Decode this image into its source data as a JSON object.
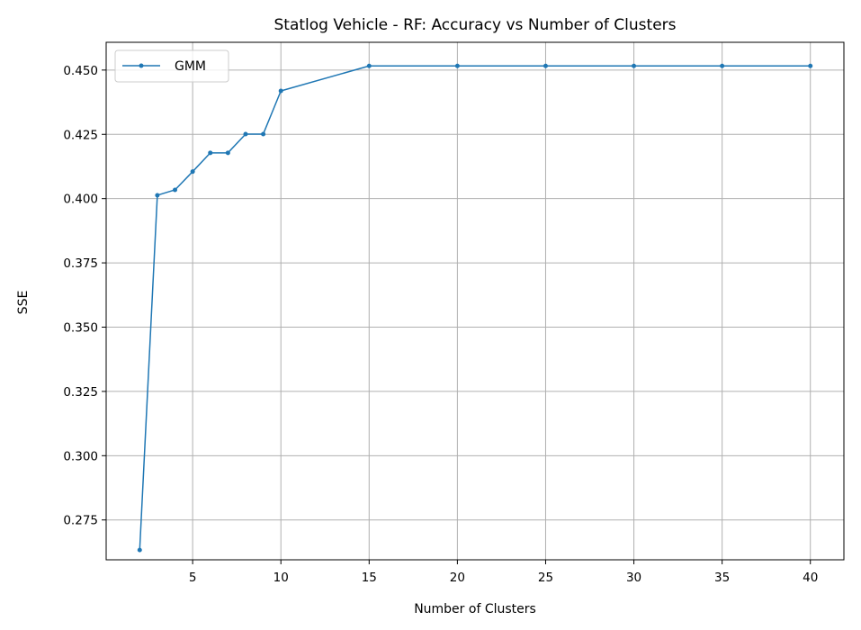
{
  "chart_data": {
    "type": "line",
    "title": "Statlog Vehicle - RF: Accuracy vs Number of Clusters",
    "xlabel": "Number of Clusters",
    "ylabel": "SSE",
    "xlim": [
      0.1,
      41.9
    ],
    "ylim": [
      0.2595,
      0.4608
    ],
    "xticks": [
      5,
      10,
      15,
      20,
      25,
      30,
      35,
      40
    ],
    "yticks": [
      0.275,
      0.3,
      0.325,
      0.35,
      0.375,
      0.4,
      0.425,
      0.45
    ],
    "ytick_labels": [
      "0.275",
      "0.300",
      "0.325",
      "0.350",
      "0.375",
      "0.400",
      "0.425",
      "0.450"
    ],
    "grid": true,
    "legend_position": "top-left",
    "series": [
      {
        "name": "GMM",
        "color": "#1f77b4",
        "x": [
          2,
          3,
          4,
          5,
          6,
          7,
          8,
          9,
          10,
          15,
          20,
          25,
          30,
          35,
          40
        ],
        "y": [
          0.2633,
          0.4013,
          0.4034,
          0.4105,
          0.4178,
          0.4178,
          0.4251,
          0.4251,
          0.4419,
          0.4516,
          0.4516,
          0.4516,
          0.4516,
          0.4516,
          0.4516
        ]
      }
    ]
  }
}
